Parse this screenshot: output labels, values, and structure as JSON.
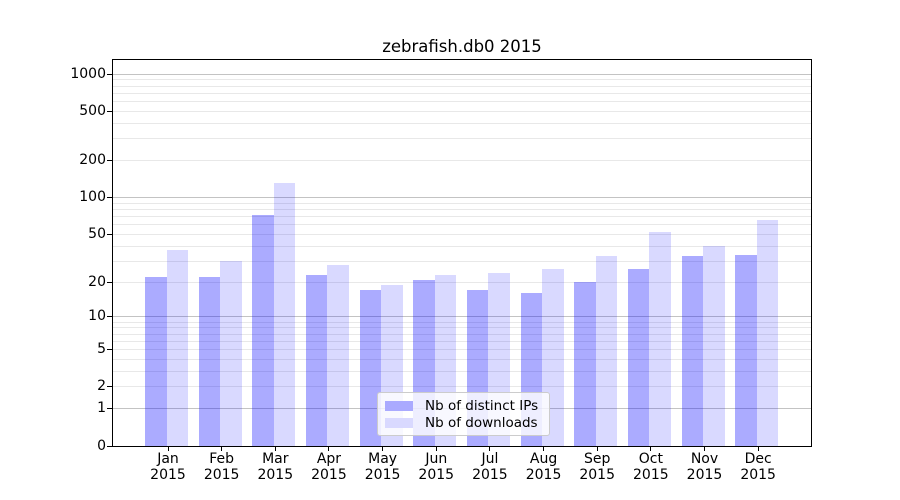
{
  "chart_data": {
    "type": "bar",
    "title": "zebrafish.db0 2015",
    "categories": [
      "Jan",
      "Feb",
      "Mar",
      "Apr",
      "May",
      "Jun",
      "Jul",
      "Aug",
      "Sep",
      "Oct",
      "Nov",
      "Dec"
    ],
    "year_label": "2015",
    "series": [
      {
        "name": "Nb of distinct IPs",
        "color": "#aaaaff",
        "fill": "rgba(0,0,255,0.33)",
        "values": [
          22,
          22,
          72,
          23,
          17,
          21,
          17,
          16,
          20,
          26,
          33,
          34
        ]
      },
      {
        "name": "Nb of downloads",
        "color": "#d9d9ff",
        "fill": "rgba(0,0,255,0.15)",
        "values": [
          37,
          30,
          130,
          28,
          19,
          23,
          24,
          26,
          33,
          52,
          40,
          65
        ]
      }
    ],
    "y_scale": "log1p",
    "y_axis": {
      "ticks": [
        0,
        1,
        2,
        5,
        10,
        20,
        50,
        100,
        200,
        500,
        1000
      ],
      "major_gridlines": [
        1,
        10,
        100,
        1000
      ],
      "minor_gridlines": [
        2,
        3,
        4,
        5,
        6,
        7,
        8,
        9,
        20,
        30,
        40,
        50,
        60,
        70,
        80,
        90,
        200,
        300,
        400,
        500,
        600,
        700,
        800,
        900
      ]
    },
    "legend": {
      "position": "lower center",
      "entries": [
        "Nb of distinct IPs",
        "Nb of downloads"
      ]
    },
    "grid": true,
    "colors": {
      "background": "#ffffff",
      "grid_minor": "#e8e8e8",
      "grid_major": "#c3c3c3",
      "axis": "#000000",
      "text": "#000000"
    }
  }
}
